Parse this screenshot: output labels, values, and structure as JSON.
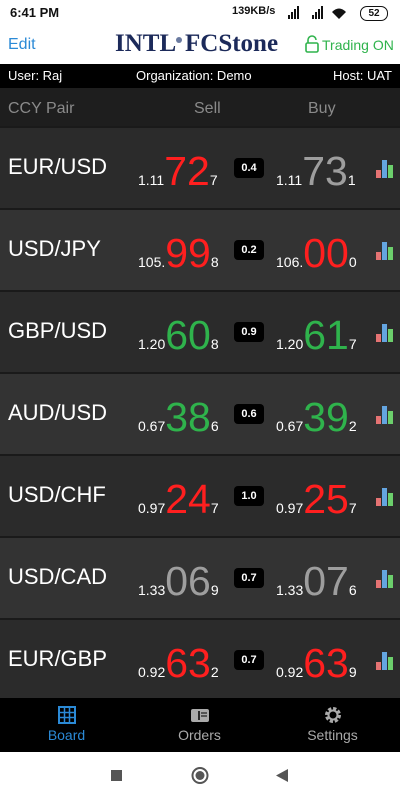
{
  "status_bar": {
    "time": "6:41 PM",
    "network": "139KB/s",
    "battery": "52"
  },
  "header": {
    "edit": "Edit",
    "logo_left": "INTL",
    "logo_right": "FCStone",
    "trading": "Trading ON"
  },
  "info": {
    "user": "User: Raj",
    "organization": "Organization: Demo",
    "host": "Host: UAT"
  },
  "columns": [
    "CCY Pair",
    "Sell",
    "Buy"
  ],
  "rows": [
    {
      "pair": "EUR/USD",
      "spread": "0.4",
      "sell": {
        "prefix": "1.11",
        "big": "72",
        "pip": "7",
        "color": "#ff1f1f"
      },
      "buy": {
        "prefix": "1.11",
        "big": "73",
        "pip": "1",
        "color": "#9e9e9e"
      }
    },
    {
      "pair": "USD/JPY",
      "spread": "0.2",
      "sell": {
        "prefix": "105.",
        "big": "99",
        "pip": "8",
        "color": "#ff1f1f"
      },
      "buy": {
        "prefix": "106.",
        "big": "00",
        "pip": "0",
        "color": "#ff1f1f"
      }
    },
    {
      "pair": "GBP/USD",
      "spread": "0.9",
      "sell": {
        "prefix": "1.20",
        "big": "60",
        "pip": "8",
        "color": "#2fb34c"
      },
      "buy": {
        "prefix": "1.20",
        "big": "61",
        "pip": "7",
        "color": "#2fb34c"
      }
    },
    {
      "pair": "AUD/USD",
      "spread": "0.6",
      "sell": {
        "prefix": "0.67",
        "big": "38",
        "pip": "6",
        "color": "#2fb34c"
      },
      "buy": {
        "prefix": "0.67",
        "big": "39",
        "pip": "2",
        "color": "#2fb34c"
      }
    },
    {
      "pair": "USD/CHF",
      "spread": "1.0",
      "sell": {
        "prefix": "0.97",
        "big": "24",
        "pip": "7",
        "color": "#ff1f1f"
      },
      "buy": {
        "prefix": "0.97",
        "big": "25",
        "pip": "7",
        "color": "#ff1f1f"
      }
    },
    {
      "pair": "USD/CAD",
      "spread": "0.7",
      "sell": {
        "prefix": "1.33",
        "big": "06",
        "pip": "9",
        "color": "#9e9e9e"
      },
      "buy": {
        "prefix": "1.33",
        "big": "07",
        "pip": "6",
        "color": "#9e9e9e"
      }
    },
    {
      "pair": "EUR/GBP",
      "spread": "0.7",
      "sell": {
        "prefix": "0.92",
        "big": "63",
        "pip": "2",
        "color": "#ff1f1f"
      },
      "buy": {
        "prefix": "0.92",
        "big": "63",
        "pip": "9",
        "color": "#ff1f1f"
      }
    }
  ],
  "tabs": [
    "Board",
    "Orders",
    "Settings"
  ]
}
